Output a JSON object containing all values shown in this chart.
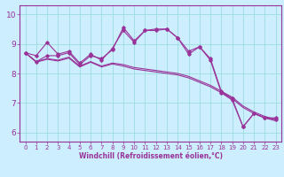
{
  "xlabel": "Windchill (Refroidissement éolien,°C)",
  "background_color": "#cceeff",
  "grid_color": "#99dddd",
  "line_color": "#993399",
  "spine_color": "#993399",
  "xlim": [
    -0.5,
    23.5
  ],
  "ylim": [
    5.7,
    10.3
  ],
  "xticks": [
    0,
    1,
    2,
    3,
    4,
    5,
    6,
    7,
    8,
    9,
    10,
    11,
    12,
    13,
    14,
    15,
    16,
    17,
    18,
    19,
    20,
    21,
    22,
    23
  ],
  "yticks": [
    6,
    7,
    8,
    9,
    10
  ],
  "series_jagged1": [
    8.7,
    8.4,
    8.6,
    8.6,
    8.7,
    8.3,
    8.6,
    8.5,
    8.8,
    9.55,
    9.1,
    9.45,
    9.5,
    9.5,
    9.2,
    8.75,
    8.9,
    8.5,
    7.4,
    7.15,
    6.2,
    6.65,
    6.5,
    6.5
  ],
  "series_jagged2": [
    8.7,
    8.6,
    9.05,
    8.65,
    8.75,
    8.35,
    8.65,
    8.45,
    8.85,
    9.45,
    9.05,
    9.45,
    9.45,
    9.5,
    9.2,
    8.65,
    8.9,
    8.45,
    7.35,
    7.1,
    6.2,
    6.65,
    6.5,
    6.45
  ],
  "series_linear1": [
    8.7,
    8.4,
    8.5,
    8.45,
    8.55,
    8.25,
    8.4,
    8.25,
    8.35,
    8.3,
    8.2,
    8.15,
    8.1,
    8.05,
    8.0,
    7.9,
    7.75,
    7.6,
    7.4,
    7.2,
    6.9,
    6.7,
    6.55,
    6.45
  ],
  "series_linear2": [
    8.7,
    8.38,
    8.48,
    8.42,
    8.52,
    8.22,
    8.38,
    8.22,
    8.32,
    8.25,
    8.15,
    8.1,
    8.05,
    8.0,
    7.95,
    7.85,
    7.7,
    7.55,
    7.35,
    7.15,
    6.85,
    6.65,
    6.5,
    6.4
  ]
}
